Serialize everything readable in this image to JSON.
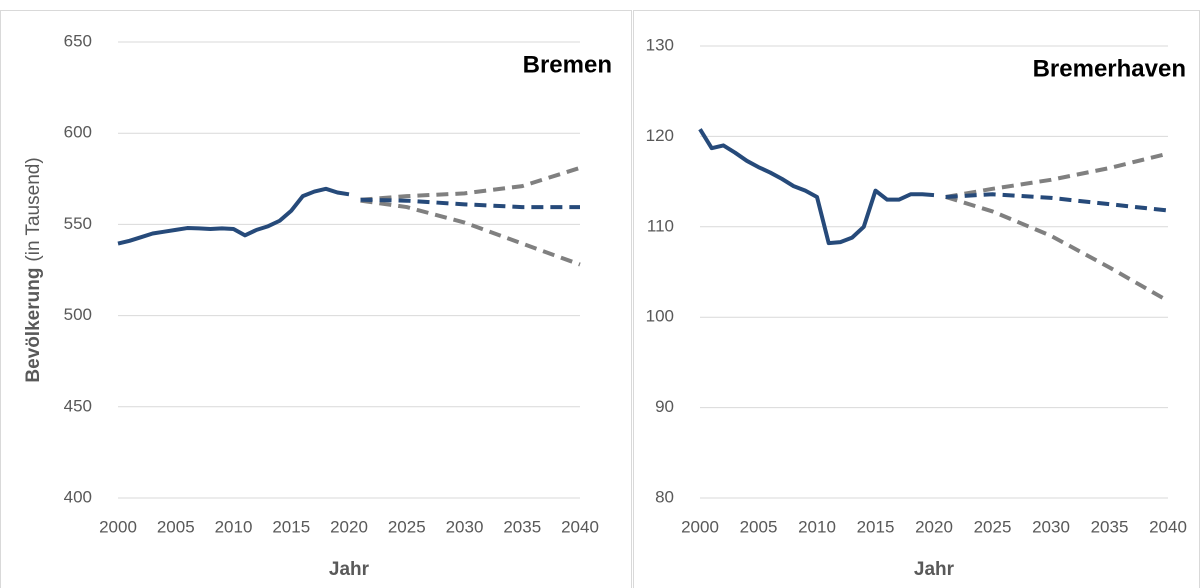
{
  "chart_data": [
    {
      "type": "line",
      "title": "Bremen",
      "xlabel": "Jahr",
      "ylabel": [
        "Bevölkerung",
        "(in Tausend)"
      ],
      "xlim": [
        2000,
        2040
      ],
      "xticks": [
        2000,
        2005,
        2010,
        2015,
        2020,
        2025,
        2030,
        2035,
        2040
      ],
      "ylim": [
        400,
        650
      ],
      "yticks": [
        400,
        450,
        500,
        550,
        600,
        650
      ],
      "grid": true,
      "series": [
        {
          "color": "#264a7a",
          "dashed": false,
          "x": [
            2000,
            2001,
            2002,
            2003,
            2004,
            2005,
            2006,
            2007,
            2008,
            2009,
            2010,
            2011,
            2012,
            2013,
            2014,
            2015,
            2016,
            2017,
            2018,
            2019,
            2020
          ],
          "values": [
            539.5,
            541,
            543,
            545,
            546,
            547,
            548,
            547.8,
            547.5,
            547.8,
            547.5,
            544,
            547,
            549,
            552,
            557.5,
            565.5,
            568,
            569.5,
            567.5,
            566.5
          ]
        },
        {
          "color": "#808080",
          "dashed": true,
          "x": [
            2021,
            2025,
            2030,
            2035,
            2040
          ],
          "values": [
            563.5,
            565.5,
            567,
            571,
            581
          ]
        },
        {
          "color": "#808080",
          "dashed": true,
          "x": [
            2021,
            2025,
            2030,
            2035,
            2040
          ],
          "values": [
            563,
            559.5,
            551,
            539.5,
            528
          ]
        },
        {
          "color": "#264a7a",
          "dashed": true,
          "x": [
            2021,
            2025,
            2030,
            2035,
            2040
          ],
          "values": [
            563.5,
            563,
            561,
            559.5,
            559.5
          ]
        }
      ]
    },
    {
      "type": "line",
      "title": "Bremerhaven",
      "xlabel": "Jahr",
      "xlim": [
        2000,
        2040
      ],
      "xticks": [
        2000,
        2005,
        2010,
        2015,
        2020,
        2025,
        2030,
        2035,
        2040
      ],
      "ylim": [
        80,
        130
      ],
      "yticks": [
        80,
        90,
        100,
        110,
        120,
        130
      ],
      "grid": true,
      "series": [
        {
          "color": "#264a7a",
          "dashed": false,
          "x": [
            2000,
            2001,
            2002,
            2003,
            2004,
            2005,
            2006,
            2007,
            2008,
            2009,
            2010,
            2011,
            2012,
            2013,
            2014,
            2015,
            2016,
            2017,
            2018,
            2019,
            2020
          ],
          "values": [
            120.8,
            118.7,
            119.0,
            118.2,
            117.3,
            116.6,
            116.0,
            115.3,
            114.5,
            114.0,
            113.3,
            108.2,
            108.3,
            108.8,
            110.0,
            114.0,
            113.0,
            113.0,
            113.6,
            113.6,
            113.5
          ]
        },
        {
          "color": "#808080",
          "dashed": true,
          "x": [
            2021,
            2025,
            2030,
            2035,
            2040
          ],
          "values": [
            113.3,
            114.2,
            115.2,
            116.5,
            118.1
          ]
        },
        {
          "color": "#808080",
          "dashed": true,
          "x": [
            2021,
            2025,
            2030,
            2035,
            2040
          ],
          "values": [
            113.3,
            111.7,
            109.0,
            105.5,
            101.8
          ]
        },
        {
          "color": "#264a7a",
          "dashed": true,
          "x": [
            2021,
            2025,
            2030,
            2035,
            2040
          ],
          "values": [
            113.3,
            113.6,
            113.2,
            112.5,
            111.8
          ]
        }
      ]
    }
  ]
}
